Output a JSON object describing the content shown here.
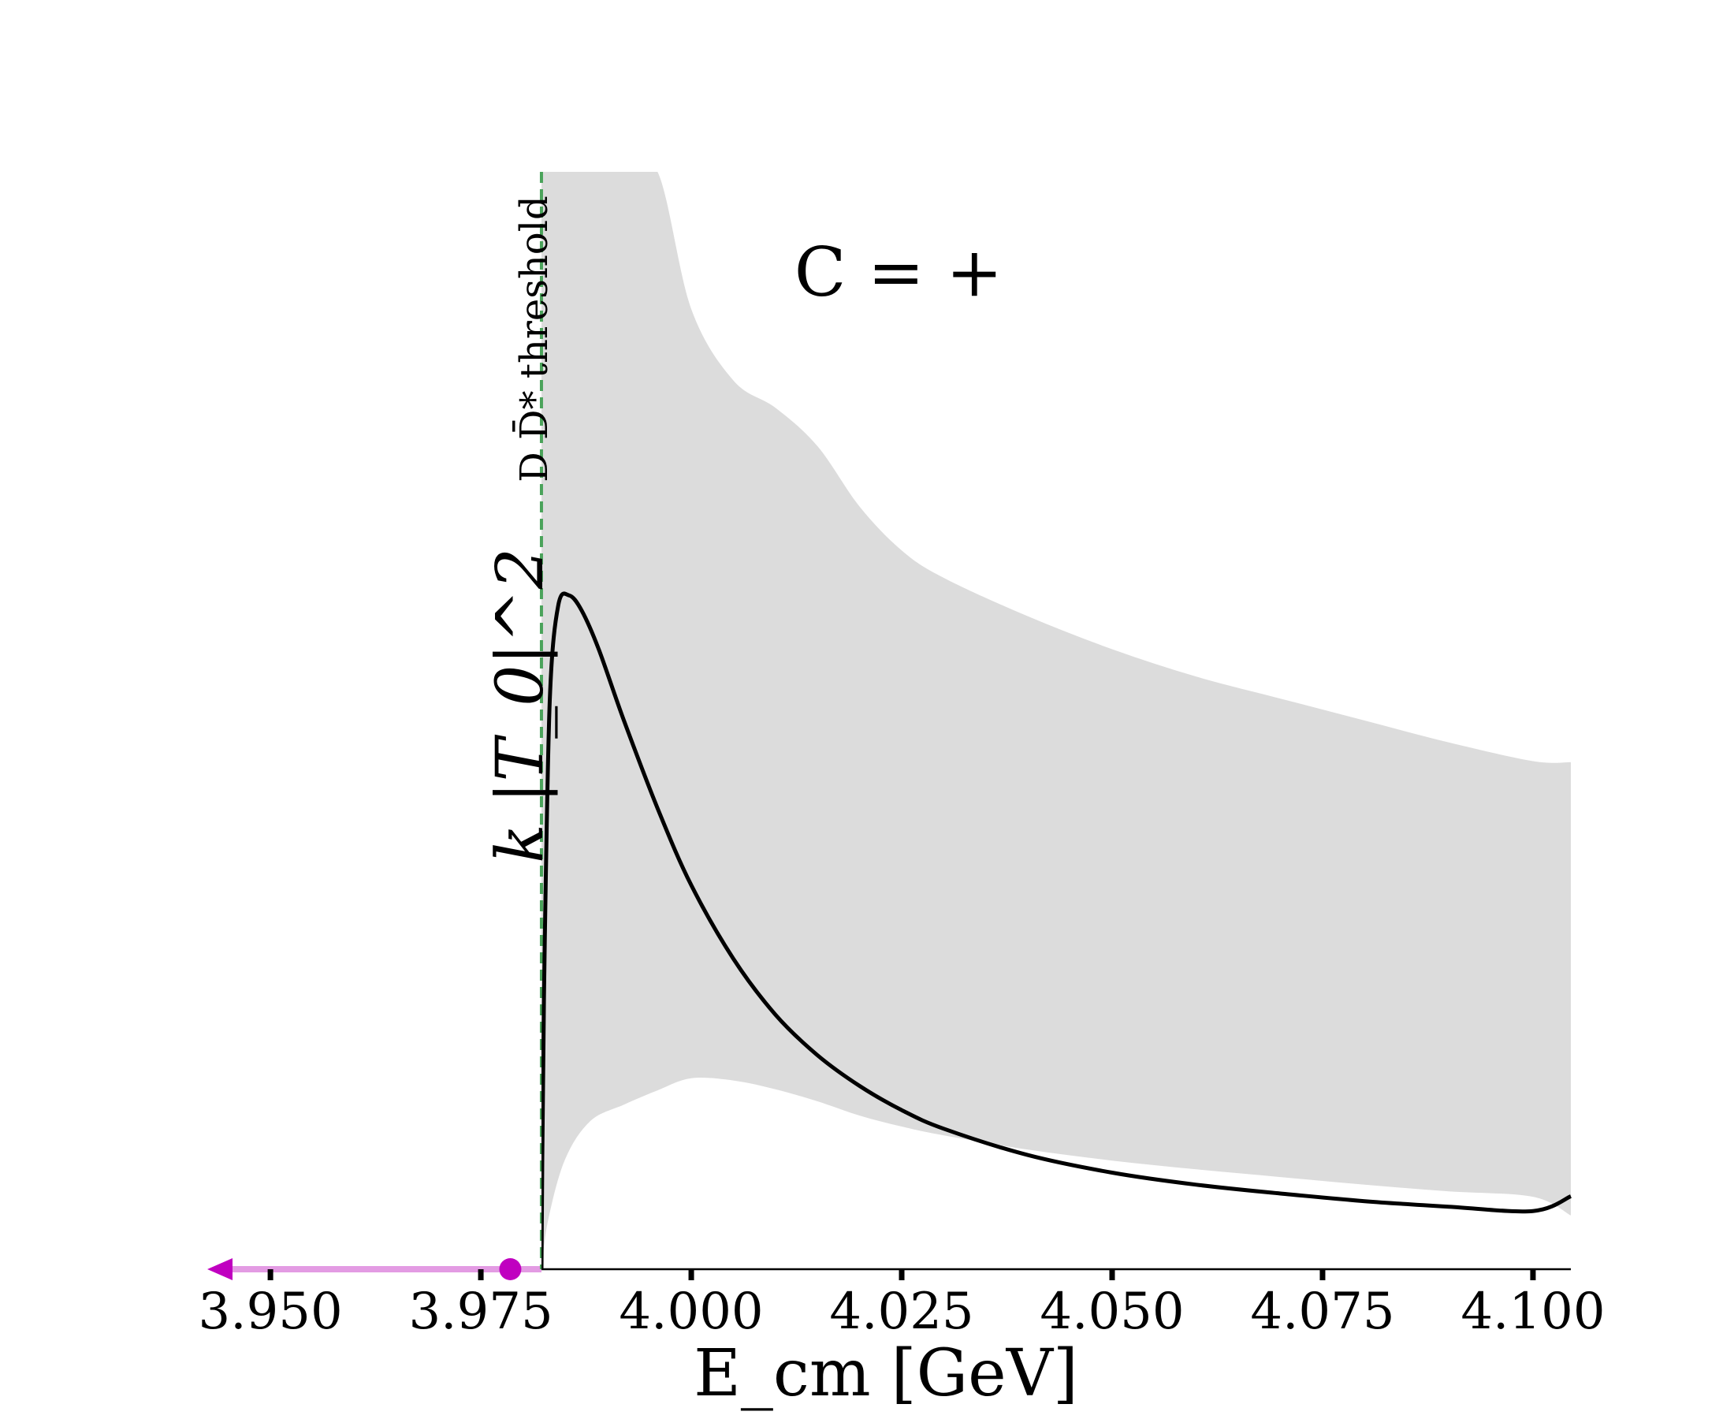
{
  "chart_data": {
    "type": "line",
    "title": "",
    "annotation": "C = +",
    "xlabel": "E_cm [GeV]",
    "ylabel": "k |T_0|^2",
    "xlim": [
      3.9425,
      4.1045
    ],
    "ylim": [
      0,
      1.0
    ],
    "grid": false,
    "y_ticks_shown": false,
    "x_ticks": [
      3.95,
      3.975,
      4.0,
      4.025,
      4.05,
      4.075,
      4.1
    ],
    "x_tick_labels": [
      "3.950",
      "3.975",
      "4.000",
      "4.025",
      "4.050",
      "4.075",
      "4.100"
    ],
    "threshold": {
      "x": 3.9822,
      "label": "D D̄* threshold",
      "color": "#4aa35a",
      "style": "dashed"
    },
    "pole": {
      "x": 3.9785,
      "color": "#c000c0",
      "band_color": "#e39be3",
      "band_x_range": [
        3.9425,
        3.9822
      ],
      "arrow_direction": "left"
    },
    "central_curve": {
      "color": "#000000",
      "x": [
        3.9822,
        3.9823,
        3.9826,
        3.9832,
        3.9842,
        3.9855,
        3.987,
        3.989,
        3.992,
        3.996,
        4.0,
        4.005,
        4.01,
        4.015,
        4.02,
        4.025,
        4.03,
        4.04,
        4.05,
        4.06,
        4.07,
        4.08,
        4.09,
        4.1,
        4.1045
      ],
      "y": [
        0.0,
        0.1,
        0.3,
        0.52,
        0.605,
        0.614,
        0.6,
        0.565,
        0.5,
        0.42,
        0.35,
        0.283,
        0.232,
        0.195,
        0.167,
        0.145,
        0.128,
        0.104,
        0.088,
        0.077,
        0.069,
        0.062,
        0.057,
        0.053,
        0.0665
      ]
    },
    "uncertainty_band": {
      "color": "#dcdcdc",
      "x": [
        3.9822,
        3.983,
        3.985,
        3.988,
        3.992,
        3.996,
        4.0,
        4.005,
        4.01,
        4.015,
        4.02,
        4.025,
        4.03,
        4.04,
        4.05,
        4.06,
        4.07,
        4.08,
        4.09,
        4.1,
        4.1045
      ],
      "upper": [
        1.0,
        1.0,
        1.0,
        1.0,
        1.0,
        1.0,
        0.875,
        0.81,
        0.785,
        0.75,
        0.695,
        0.655,
        0.63,
        0.595,
        0.565,
        0.54,
        0.52,
        0.5,
        0.48,
        0.463,
        0.462
      ],
      "lower": [
        0.0,
        0.045,
        0.1,
        0.135,
        0.15,
        0.163,
        0.174,
        0.172,
        0.164,
        0.153,
        0.14,
        0.13,
        0.122,
        0.109,
        0.099,
        0.091,
        0.084,
        0.077,
        0.071,
        0.066,
        0.049
      ]
    }
  }
}
